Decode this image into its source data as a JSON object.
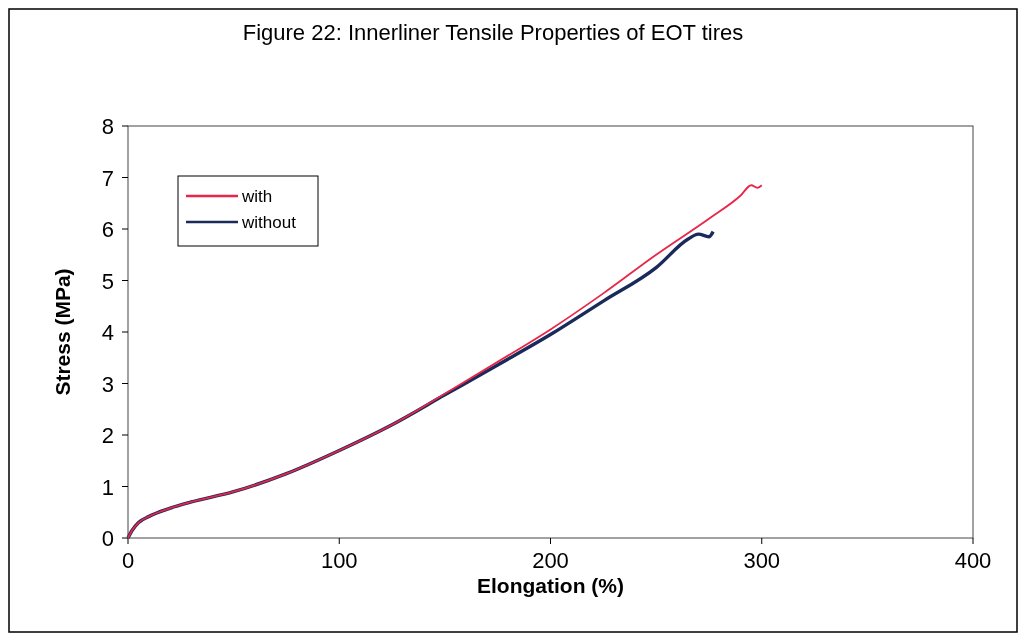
{
  "chart_data": {
    "type": "line",
    "title": "Figure 22: Innerliner Tensile Properties of EOT tires",
    "xlabel": "Elongation (%)",
    "ylabel": "Stress (MPa)",
    "xlim": [
      0,
      400
    ],
    "xticks": [
      0,
      100,
      200,
      300,
      400
    ],
    "ylim": [
      0,
      8
    ],
    "yticks": [
      0,
      1,
      2,
      3,
      4,
      5,
      6,
      7,
      8
    ],
    "grid": false,
    "legend": "top left",
    "marker": "none",
    "line_style": "solid",
    "series": [
      {
        "name": "with",
        "color": "#e8264a",
        "x": [
          0,
          2,
          5,
          10,
          20,
          30,
          50,
          75,
          100,
          125,
          150,
          175,
          200,
          225,
          250,
          275,
          290,
          295,
          298,
          300
        ],
        "values": [
          0,
          0.15,
          0.3,
          0.42,
          0.58,
          0.7,
          0.9,
          1.25,
          1.7,
          2.2,
          2.8,
          3.42,
          4.05,
          4.75,
          5.5,
          6.2,
          6.65,
          6.85,
          6.8,
          6.85
        ]
      },
      {
        "name": "without",
        "color": "#1a2a5a",
        "x": [
          0,
          2,
          5,
          10,
          20,
          30,
          50,
          75,
          100,
          125,
          150,
          175,
          200,
          225,
          250,
          265,
          270,
          275,
          277
        ],
        "values": [
          0,
          0.15,
          0.3,
          0.42,
          0.58,
          0.7,
          0.9,
          1.25,
          1.7,
          2.2,
          2.78,
          3.36,
          3.95,
          4.6,
          5.25,
          5.8,
          5.9,
          5.85,
          5.95
        ]
      }
    ]
  }
}
